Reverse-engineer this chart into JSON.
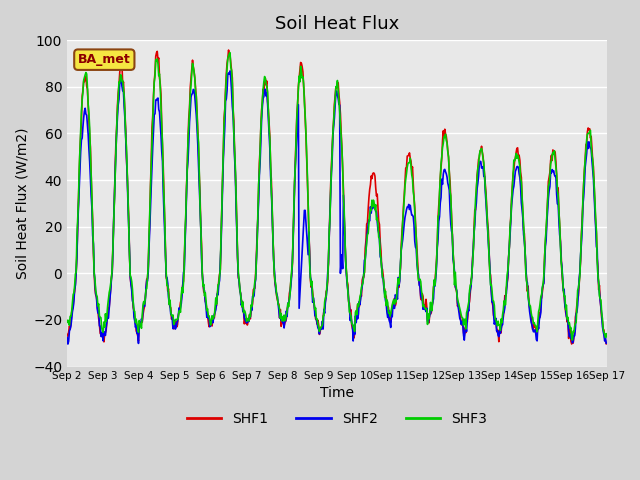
{
  "title": "Soil Heat Flux",
  "xlabel": "Time",
  "ylabel": "Soil Heat Flux (W/m2)",
  "ylim": [
    -40,
    100
  ],
  "yticks": [
    -40,
    -20,
    0,
    20,
    40,
    60,
    80,
    100
  ],
  "xtick_labels": [
    "Sep 2",
    "Sep 3",
    "Sep 4",
    "Sep 5",
    "Sep 6",
    "Sep 7",
    "Sep 8",
    "Sep 9",
    "Sep 10",
    "Sep 11",
    "Sep 12",
    "Sep 13",
    "Sep 14",
    "Sep 15",
    "Sep 16",
    "Sep 17"
  ],
  "colors": {
    "SHF1": "#dd0000",
    "SHF2": "#0000ee",
    "SHF3": "#00cc00"
  },
  "line_width": 1.2,
  "background_color": "#d4d4d4",
  "plot_bg_color": "#e8e8e8",
  "ba_met_label": "BA_met",
  "legend_entries": [
    "SHF1",
    "SHF2",
    "SHF3"
  ],
  "n_days": 15,
  "pts_per_day": 48,
  "day_peaks": [
    85,
    88,
    94,
    89,
    95,
    84,
    89,
    81,
    43,
    52,
    61,
    53,
    53,
    53,
    62
  ],
  "night_troughs": [
    -27,
    -27,
    -22,
    -22,
    -21,
    -21,
    -22,
    -25,
    -18,
    -16,
    -20,
    -26,
    -25,
    -26,
    -30
  ],
  "shf2_day_peaks": [
    70,
    83,
    75,
    78,
    87,
    79,
    80,
    77,
    29,
    30,
    44,
    47,
    46,
    45,
    55
  ],
  "shf2_night_troughs": [
    -28,
    -28,
    -23,
    -23,
    -22,
    -22,
    -23,
    -26,
    -20,
    -17,
    -21,
    -27,
    -26,
    -27,
    -31
  ],
  "shf3_day_peaks": [
    86,
    86,
    92,
    88,
    94,
    83,
    88,
    80,
    30,
    48,
    59,
    52,
    52,
    52,
    61
  ],
  "shf3_night_troughs": [
    -22,
    -23,
    -21,
    -21,
    -20,
    -20,
    -21,
    -24,
    -17,
    -15,
    -19,
    -22,
    -22,
    -23,
    -28
  ]
}
